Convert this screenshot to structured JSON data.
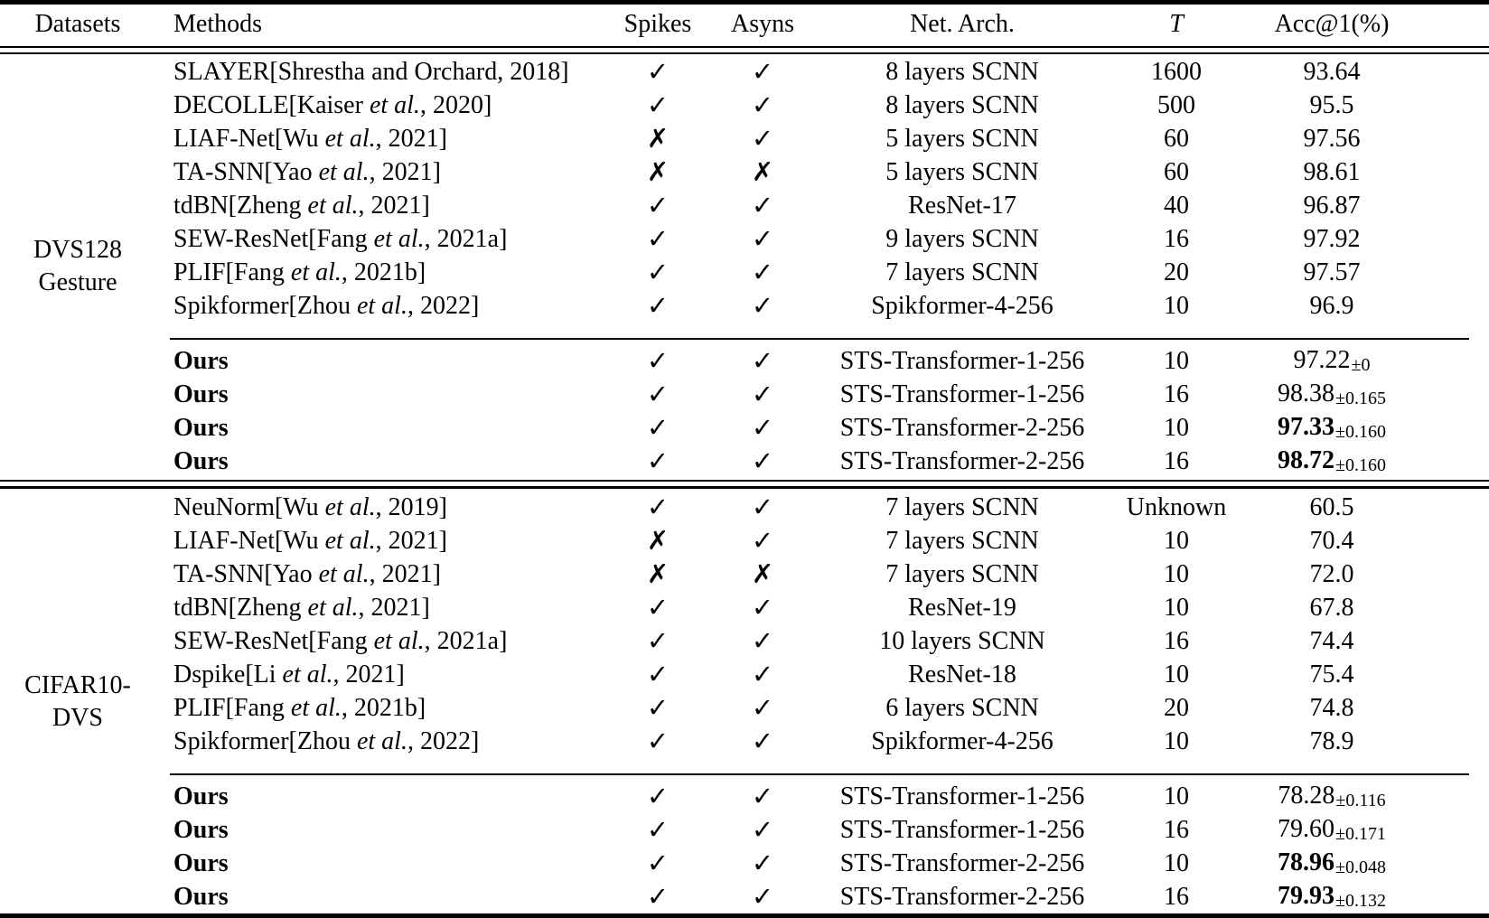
{
  "colors": {
    "text": "#000000",
    "background": "#ffffff",
    "rules": "#000000"
  },
  "table": {
    "headers": {
      "datasets": "Datasets",
      "methods": "Methods",
      "spikes": "Spikes",
      "asyns": "Asyns",
      "arch": "Net. Arch.",
      "t": "T",
      "acc": "Acc@1(%)"
    },
    "marks": {
      "check": "✓",
      "cross": "✗"
    },
    "sections": [
      {
        "dataset_lines": [
          "DVS128",
          "Gesture"
        ],
        "baseline_rows": [
          {
            "method": "SLAYER[Shrestha and Orchard, 2018]",
            "spikes": "check",
            "asyns": "check",
            "arch": "8 layers SCNN",
            "t": "1600",
            "acc": "93.64"
          },
          {
            "method": "DECOLLE[Kaiser et al., 2020]",
            "spikes": "check",
            "asyns": "check",
            "arch": "8 layers SCNN",
            "t": "500",
            "acc": "95.5"
          },
          {
            "method": "LIAF-Net[Wu et al., 2021]",
            "spikes": "cross",
            "asyns": "check",
            "arch": "5 layers SCNN",
            "t": "60",
            "acc": "97.56"
          },
          {
            "method": "TA-SNN[Yao et al., 2021]",
            "spikes": "cross",
            "asyns": "cross",
            "arch": "5 layers SCNN",
            "t": "60",
            "acc": "98.61"
          },
          {
            "method": "tdBN[Zheng et al., 2021]",
            "spikes": "check",
            "asyns": "check",
            "arch": "ResNet-17",
            "t": "40",
            "acc": "96.87"
          },
          {
            "method": "SEW-ResNet[Fang et al., 2021a]",
            "spikes": "check",
            "asyns": "check",
            "arch": "9 layers SCNN",
            "t": "16",
            "acc": "97.92"
          },
          {
            "method": "PLIF[Fang et al., 2021b]",
            "spikes": "check",
            "asyns": "check",
            "arch": "7 layers SCNN",
            "t": "20",
            "acc": "97.57"
          },
          {
            "method": "Spikformer[Zhou et al., 2022]",
            "spikes": "check",
            "asyns": "check",
            "arch": "Spikformer-4-256",
            "t": "10",
            "acc": "96.9"
          }
        ],
        "ours_rows": [
          {
            "method": "Ours",
            "bold": true,
            "spikes": "check",
            "asyns": "check",
            "arch": "STS-Transformer-1-256",
            "t": "10",
            "acc": "97.22",
            "pm": "0",
            "acc_bold": false
          },
          {
            "method": "Ours",
            "bold": true,
            "spikes": "check",
            "asyns": "check",
            "arch": "STS-Transformer-1-256",
            "t": "16",
            "acc": "98.38",
            "pm": "0.165",
            "acc_bold": false
          },
          {
            "method": "Ours",
            "bold": true,
            "spikes": "check",
            "asyns": "check",
            "arch": "STS-Transformer-2-256",
            "t": "10",
            "acc": "97.33",
            "pm": "0.160",
            "acc_bold": true
          },
          {
            "method": "Ours",
            "bold": true,
            "spikes": "check",
            "asyns": "check",
            "arch": "STS-Transformer-2-256",
            "t": "16",
            "acc": "98.72",
            "pm": "0.160",
            "acc_bold": true
          }
        ]
      },
      {
        "dataset_lines": [
          "CIFAR10-",
          "DVS"
        ],
        "baseline_rows": [
          {
            "method": "NeuNorm[Wu et al., 2019]",
            "spikes": "check",
            "asyns": "check",
            "arch": "7 layers SCNN",
            "t": "Unknown",
            "acc": "60.5"
          },
          {
            "method": "LIAF-Net[Wu et al., 2021]",
            "spikes": "cross",
            "asyns": "check",
            "arch": "7 layers SCNN",
            "t": "10",
            "acc": "70.4"
          },
          {
            "method": "TA-SNN[Yao et al., 2021]",
            "spikes": "cross",
            "asyns": "cross",
            "arch": "7 layers SCNN",
            "t": "10",
            "acc": "72.0"
          },
          {
            "method": "tdBN[Zheng et al., 2021]",
            "spikes": "check",
            "asyns": "check",
            "arch": "ResNet-19",
            "t": "10",
            "acc": "67.8"
          },
          {
            "method": "SEW-ResNet[Fang et al., 2021a]",
            "spikes": "check",
            "asyns": "check",
            "arch": "10 layers SCNN",
            "t": "16",
            "acc": "74.4"
          },
          {
            "method": "Dspike[Li et al., 2021]",
            "spikes": "check",
            "asyns": "check",
            "arch": "ResNet-18",
            "t": "10",
            "acc": "75.4"
          },
          {
            "method": "PLIF[Fang et al., 2021b]",
            "spikes": "check",
            "asyns": "check",
            "arch": "6 layers SCNN",
            "t": "20",
            "acc": "74.8"
          },
          {
            "method": "Spikformer[Zhou et al., 2022]",
            "spikes": "check",
            "asyns": "check",
            "arch": "Spikformer-4-256",
            "t": "10",
            "acc": "78.9"
          }
        ],
        "ours_rows": [
          {
            "method": "Ours",
            "bold": true,
            "spikes": "check",
            "asyns": "check",
            "arch": "STS-Transformer-1-256",
            "t": "10",
            "acc": "78.28",
            "pm": "0.116",
            "acc_bold": false
          },
          {
            "method": "Ours",
            "bold": true,
            "spikes": "check",
            "asyns": "check",
            "arch": "STS-Transformer-1-256",
            "t": "16",
            "acc": "79.60",
            "pm": "0.171",
            "acc_bold": false
          },
          {
            "method": "Ours",
            "bold": true,
            "spikes": "check",
            "asyns": "check",
            "arch": "STS-Transformer-2-256",
            "t": "10",
            "acc": "78.96",
            "pm": "0.048",
            "acc_bold": true
          },
          {
            "method": "Ours",
            "bold": true,
            "spikes": "check",
            "asyns": "check",
            "arch": "STS-Transformer-2-256",
            "t": "16",
            "acc": "79.93",
            "pm": "0.132",
            "acc_bold": true
          }
        ]
      }
    ]
  }
}
